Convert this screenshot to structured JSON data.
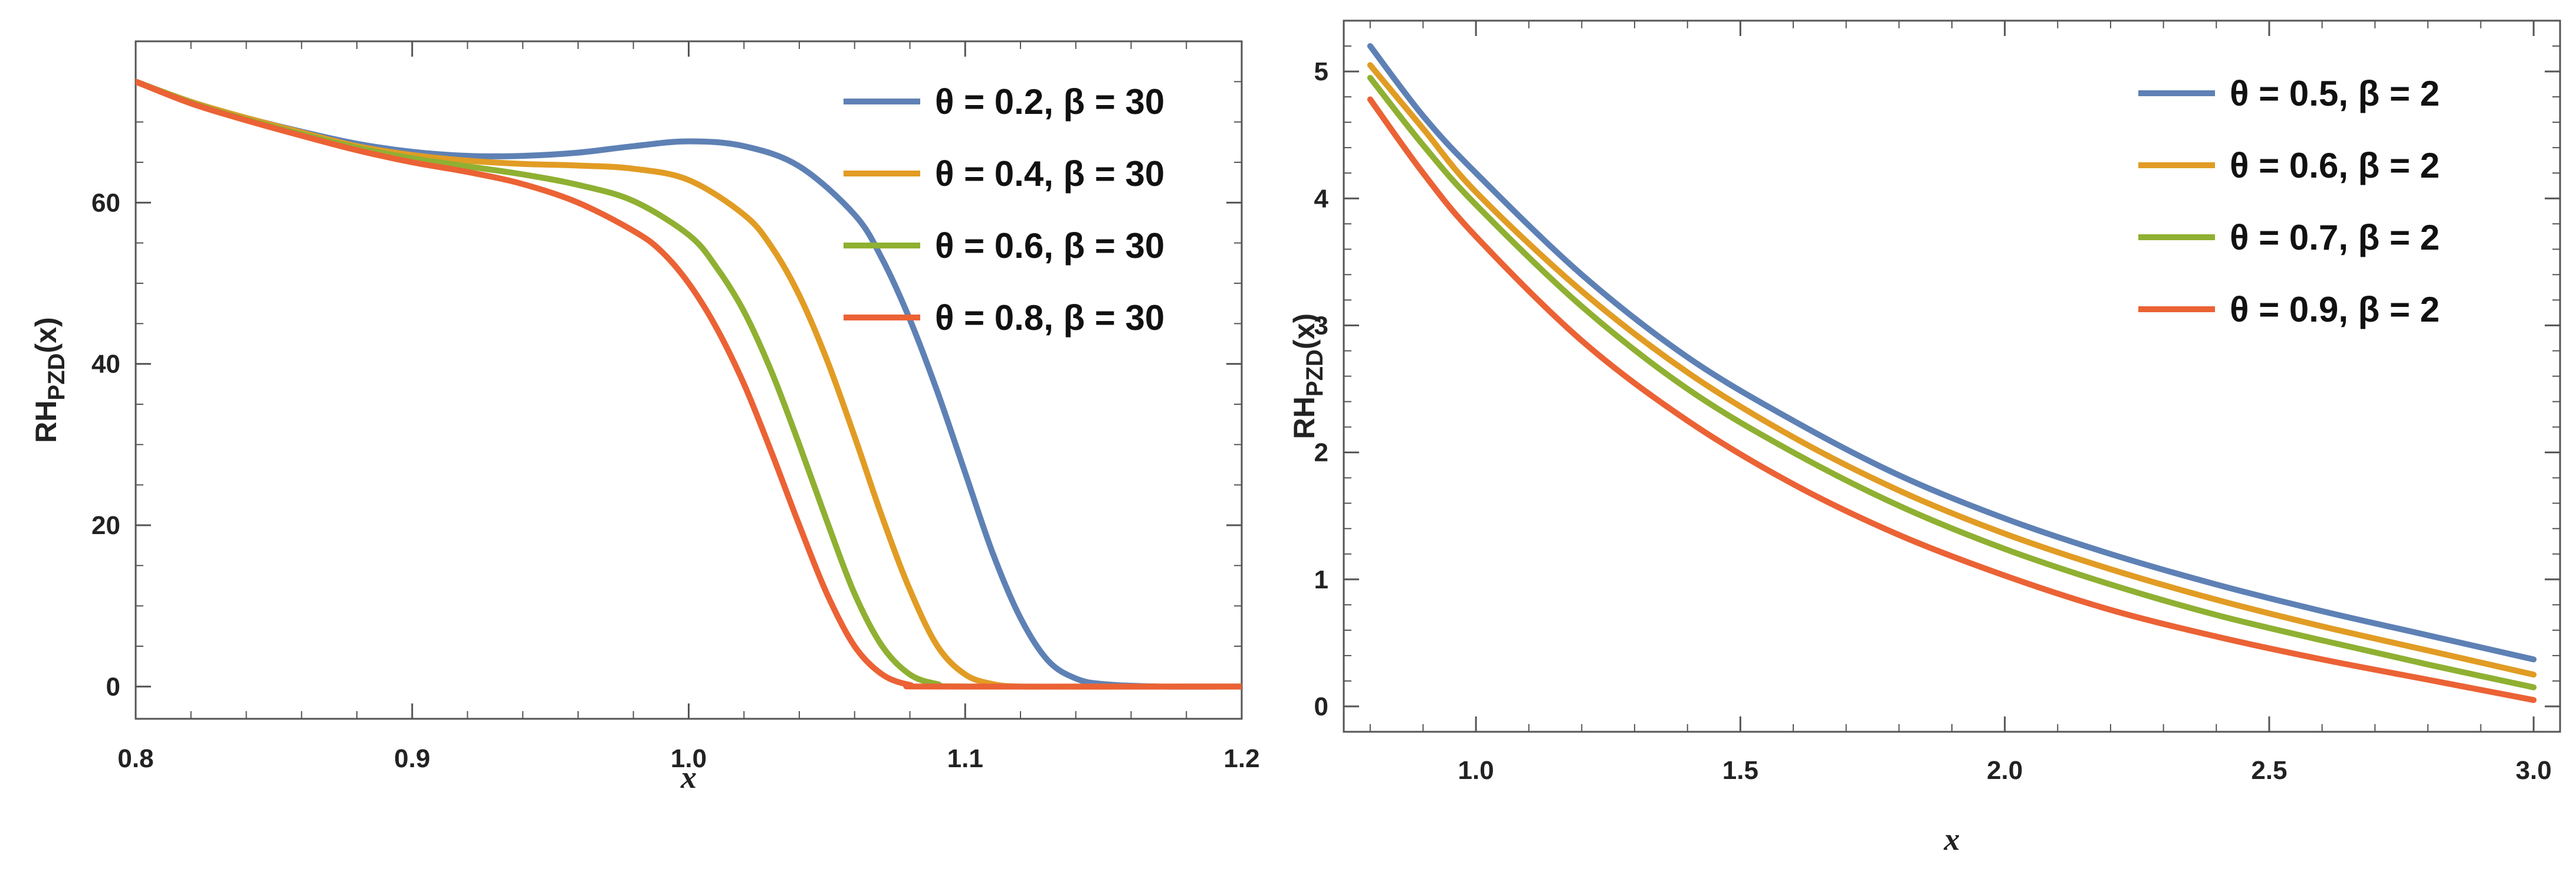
{
  "chart_data": [
    {
      "type": "line",
      "title": "",
      "xlabel": "x",
      "ylabel": "RH_PZD(x)",
      "ylabel_main": "RH",
      "ylabel_sub": "PZD",
      "ylabel_tail": "(x)",
      "xlim": [
        0.8,
        1.2
      ],
      "ylim": [
        -4,
        80
      ],
      "xticks": [
        "0.8",
        "0.9",
        "1.0",
        "1.1",
        "1.2"
      ],
      "yticks": [
        "0",
        "20",
        "40",
        "60"
      ],
      "legend_position": "top-right",
      "series": [
        {
          "name": "θ = 0.2, β = 30",
          "color": "#5e81b5",
          "x": [
            0.8,
            0.82,
            0.84,
            0.86,
            0.88,
            0.9,
            0.92,
            0.94,
            0.96,
            0.98,
            1.0,
            1.02,
            1.04,
            1.06,
            1.07,
            1.08,
            1.09,
            1.1,
            1.11,
            1.12,
            1.13,
            1.14,
            1.15,
            1.17,
            1.2
          ],
          "y": [
            75.0,
            72.5,
            70.5,
            68.8,
            67.3,
            66.3,
            65.8,
            65.8,
            66.2,
            67.0,
            67.6,
            67.0,
            64.5,
            58.5,
            53.0,
            45.5,
            36.5,
            26.5,
            16.5,
            8.5,
            3.2,
            1.0,
            0.3,
            0.0,
            0.0
          ]
        },
        {
          "name": "θ = 0.4, β = 30",
          "color": "#e19c24",
          "x": [
            0.8,
            0.82,
            0.84,
            0.86,
            0.88,
            0.9,
            0.92,
            0.94,
            0.96,
            0.98,
            1.0,
            1.02,
            1.03,
            1.04,
            1.05,
            1.06,
            1.07,
            1.08,
            1.09,
            1.1,
            1.11,
            1.12,
            1.14,
            1.2
          ],
          "y": [
            75.0,
            72.5,
            70.5,
            68.7,
            67.0,
            65.9,
            65.2,
            64.8,
            64.6,
            64.2,
            62.8,
            58.5,
            54.5,
            48.5,
            40.5,
            31.0,
            21.0,
            12.0,
            5.0,
            1.5,
            0.3,
            0.0,
            0.0,
            0.0
          ]
        },
        {
          "name": "θ = 0.6, β = 30",
          "color": "#8fb032",
          "x": [
            0.8,
            0.82,
            0.84,
            0.86,
            0.88,
            0.9,
            0.92,
            0.94,
            0.96,
            0.98,
            1.0,
            1.01,
            1.02,
            1.03,
            1.04,
            1.05,
            1.06,
            1.07,
            1.08,
            1.09,
            1.1,
            1.2
          ],
          "y": [
            75.0,
            72.4,
            70.3,
            68.5,
            66.8,
            65.5,
            64.5,
            63.5,
            62.2,
            60.2,
            56.0,
            52.0,
            46.5,
            39.0,
            30.0,
            20.5,
            11.5,
            5.0,
            1.5,
            0.3,
            0.0,
            0.0
          ]
        },
        {
          "name": "θ = 0.8, β = 30",
          "color": "#eb6235",
          "x": [
            0.8,
            0.82,
            0.84,
            0.86,
            0.88,
            0.9,
            0.92,
            0.94,
            0.96,
            0.98,
            0.99,
            1.0,
            1.01,
            1.02,
            1.03,
            1.04,
            1.05,
            1.06,
            1.07,
            1.08,
            1.09,
            1.2
          ],
          "y": [
            75.0,
            72.3,
            70.2,
            68.3,
            66.5,
            65.0,
            63.8,
            62.3,
            60.0,
            56.5,
            54.0,
            50.0,
            44.5,
            37.5,
            29.0,
            20.0,
            11.5,
            5.0,
            1.5,
            0.2,
            0.0,
            0.0
          ]
        }
      ]
    },
    {
      "type": "line",
      "title": "",
      "xlabel": "x",
      "ylabel": "RH_PZD(x)",
      "ylabel_main": "RH",
      "ylabel_sub": "PZD",
      "ylabel_tail": "(x)",
      "xlim": [
        0.75,
        3.05
      ],
      "ylim": [
        -0.2,
        5.4
      ],
      "xticks": [
        "1.0",
        "1.5",
        "2.0",
        "2.5",
        "3.0"
      ],
      "yticks": [
        "0",
        "1",
        "2",
        "3",
        "4",
        "5"
      ],
      "legend_position": "top-right",
      "series": [
        {
          "name": "θ = 0.5, β = 2",
          "color": "#5e81b5",
          "x": [
            0.8,
            0.9,
            1.0,
            1.2,
            1.4,
            1.6,
            1.8,
            2.0,
            2.2,
            2.4,
            2.6,
            2.8,
            3.0
          ],
          "y": [
            5.2,
            4.65,
            4.2,
            3.4,
            2.75,
            2.25,
            1.82,
            1.48,
            1.2,
            0.96,
            0.75,
            0.56,
            0.37
          ]
        },
        {
          "name": "θ = 0.6, β = 2",
          "color": "#e19c24",
          "x": [
            0.8,
            0.9,
            1.0,
            1.2,
            1.4,
            1.6,
            1.8,
            2.0,
            2.2,
            2.4,
            2.6,
            2.8,
            3.0
          ],
          "y": [
            5.05,
            4.55,
            4.05,
            3.27,
            2.63,
            2.12,
            1.7,
            1.36,
            1.08,
            0.84,
            0.63,
            0.44,
            0.25
          ]
        },
        {
          "name": "θ = 0.7, β = 2",
          "color": "#8fb032",
          "x": [
            0.8,
            0.9,
            1.0,
            1.2,
            1.4,
            1.6,
            1.8,
            2.0,
            2.2,
            2.4,
            2.6,
            2.8,
            3.0
          ],
          "y": [
            4.95,
            4.42,
            3.95,
            3.15,
            2.5,
            2.0,
            1.58,
            1.24,
            0.96,
            0.72,
            0.52,
            0.33,
            0.15
          ]
        },
        {
          "name": "θ = 0.9, β = 2",
          "color": "#eb6235",
          "x": [
            0.8,
            0.9,
            1.0,
            1.2,
            1.4,
            1.6,
            1.8,
            2.0,
            2.2,
            2.4,
            2.6,
            2.8,
            3.0
          ],
          "y": [
            4.78,
            4.2,
            3.7,
            2.88,
            2.25,
            1.75,
            1.35,
            1.03,
            0.76,
            0.55,
            0.37,
            0.21,
            0.05
          ]
        }
      ]
    }
  ]
}
